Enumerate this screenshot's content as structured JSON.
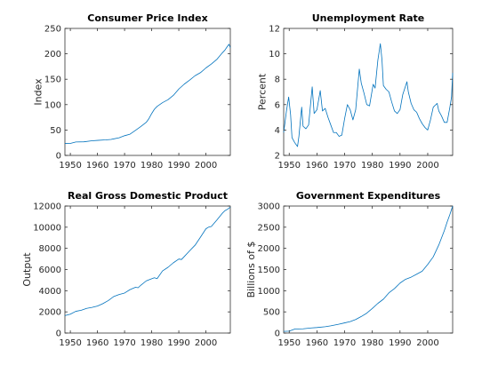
{
  "colors": {
    "series": "#0072BD",
    "axis": "#262626",
    "background": "#FFFFFF"
  },
  "chart_data": [
    {
      "type": "line",
      "title": "Consumer Price Index",
      "xlabel": "",
      "ylabel": "Index",
      "xlim": [
        1948,
        2009
      ],
      "ylim": [
        0,
        250
      ],
      "xticks": [
        1950,
        1960,
        1970,
        1980,
        1990,
        2000
      ],
      "yticks": [
        0,
        50,
        100,
        150,
        200,
        250
      ],
      "grid": false,
      "x": [
        1948,
        1950,
        1952,
        1955,
        1958,
        1960,
        1963,
        1965,
        1968,
        1970,
        1972,
        1974,
        1976,
        1978,
        1979,
        1980,
        1981,
        1982,
        1984,
        1986,
        1988,
        1990,
        1992,
        1994,
        1996,
        1998,
        2000,
        2002,
        2004,
        2006,
        2007,
        2008,
        2008.5,
        2009
      ],
      "y": [
        23.7,
        23.6,
        26.5,
        26.8,
        28.9,
        29.6,
        30.6,
        31.5,
        34.8,
        38.8,
        41.8,
        49.3,
        56.9,
        65.2,
        72.6,
        82.4,
        90.9,
        96.5,
        103.9,
        109.6,
        118.3,
        130.7,
        140.3,
        148.2,
        156.9,
        163.0,
        172.2,
        179.9,
        188.9,
        201.6,
        207.3,
        215.3,
        218.8,
        212.0
      ]
    },
    {
      "type": "line",
      "title": "Unemployment Rate",
      "xlabel": "",
      "ylabel": "Percent",
      "xlim": [
        1948,
        2009
      ],
      "ylim": [
        2,
        12
      ],
      "xticks": [
        1950,
        1960,
        1970,
        1980,
        1990,
        2000
      ],
      "yticks": [
        2,
        4,
        6,
        8,
        10,
        12
      ],
      "grid": false,
      "x": [
        1948,
        1949,
        1949.8,
        1950.5,
        1951,
        1952,
        1953,
        1953.5,
        1954.5,
        1955,
        1956,
        1957,
        1958.3,
        1959,
        1960,
        1961.2,
        1962,
        1963,
        1964,
        1965,
        1966,
        1967,
        1968,
        1969,
        1970,
        1971,
        1972,
        1973,
        1974,
        1975.3,
        1976,
        1977,
        1978,
        1979,
        1980.3,
        1981,
        1982,
        1982.9,
        1983.5,
        1984,
        1985,
        1986,
        1987,
        1988,
        1989,
        1990,
        1991,
        1992.5,
        1993,
        1994,
        1995,
        1996,
        1997,
        1998,
        1999,
        2000,
        2001,
        2002,
        2003.4,
        2004,
        2005,
        2006,
        2007,
        2008,
        2008.6,
        2009
      ],
      "y": [
        3.8,
        5.5,
        6.6,
        5.2,
        3.4,
        3.0,
        2.7,
        3.5,
        5.8,
        4.3,
        4.1,
        4.4,
        7.4,
        5.3,
        5.6,
        7.1,
        5.5,
        5.7,
        5.0,
        4.4,
        3.8,
        3.8,
        3.5,
        3.6,
        4.9,
        6.0,
        5.6,
        4.8,
        5.6,
        8.8,
        7.7,
        6.9,
        6.0,
        5.9,
        7.6,
        7.3,
        9.5,
        10.8,
        9.5,
        7.5,
        7.2,
        7.0,
        6.2,
        5.5,
        5.3,
        5.6,
        6.8,
        7.8,
        7.0,
        6.1,
        5.6,
        5.4,
        4.9,
        4.5,
        4.2,
        4.0,
        4.8,
        5.8,
        6.1,
        5.5,
        5.1,
        4.6,
        4.6,
        5.8,
        6.6,
        8.5
      ]
    },
    {
      "type": "line",
      "title": "Real Gross Domestic Product",
      "xlabel": "",
      "ylabel": "Output",
      "xlim": [
        1948,
        2009
      ],
      "ylim": [
        0,
        12000
      ],
      "xticks": [
        1950,
        1960,
        1970,
        1980,
        1990,
        2000
      ],
      "yticks": [
        0,
        2000,
        4000,
        6000,
        8000,
        10000,
        12000
      ],
      "grid": false,
      "x": [
        1948,
        1950,
        1952,
        1954,
        1956,
        1958,
        1960,
        1962,
        1964,
        1966,
        1968,
        1970,
        1972,
        1974,
        1975,
        1976,
        1978,
        1980,
        1981,
        1982,
        1984,
        1986,
        1988,
        1990,
        1991,
        1992,
        1994,
        1996,
        1998,
        2000,
        2001,
        2002,
        2004,
        2006,
        2007,
        2008,
        2009
      ],
      "y": [
        1650,
        1780,
        2050,
        2150,
        2330,
        2420,
        2550,
        2780,
        3070,
        3450,
        3640,
        3780,
        4100,
        4320,
        4280,
        4520,
        4930,
        5130,
        5220,
        5140,
        5870,
        6210,
        6640,
        6990,
        6950,
        7220,
        7770,
        8300,
        9060,
        9850,
        10010,
        10070,
        10670,
        11300,
        11560,
        11700,
        11900
      ]
    },
    {
      "type": "line",
      "title": "Government Expenditures",
      "xlabel": "",
      "ylabel": "Billions of $",
      "xlim": [
        1948,
        2009
      ],
      "ylim": [
        0,
        3000
      ],
      "xticks": [
        1950,
        1960,
        1970,
        1980,
        1990,
        2000
      ],
      "yticks": [
        0,
        500,
        1000,
        1500,
        2000,
        2500,
        3000
      ],
      "grid": false,
      "x": [
        1948,
        1950,
        1952,
        1955,
        1958,
        1960,
        1963,
        1965,
        1968,
        1970,
        1972,
        1974,
        1976,
        1978,
        1980,
        1982,
        1984,
        1986,
        1988,
        1990,
        1992,
        1994,
        1996,
        1998,
        2000,
        2002,
        2004,
        2006,
        2007,
        2008,
        2009
      ],
      "y": [
        40,
        45,
        95,
        100,
        120,
        130,
        150,
        170,
        210,
        240,
        270,
        320,
        390,
        470,
        580,
        700,
        800,
        950,
        1050,
        1180,
        1270,
        1320,
        1390,
        1460,
        1620,
        1800,
        2080,
        2420,
        2620,
        2800,
        3000
      ]
    }
  ]
}
